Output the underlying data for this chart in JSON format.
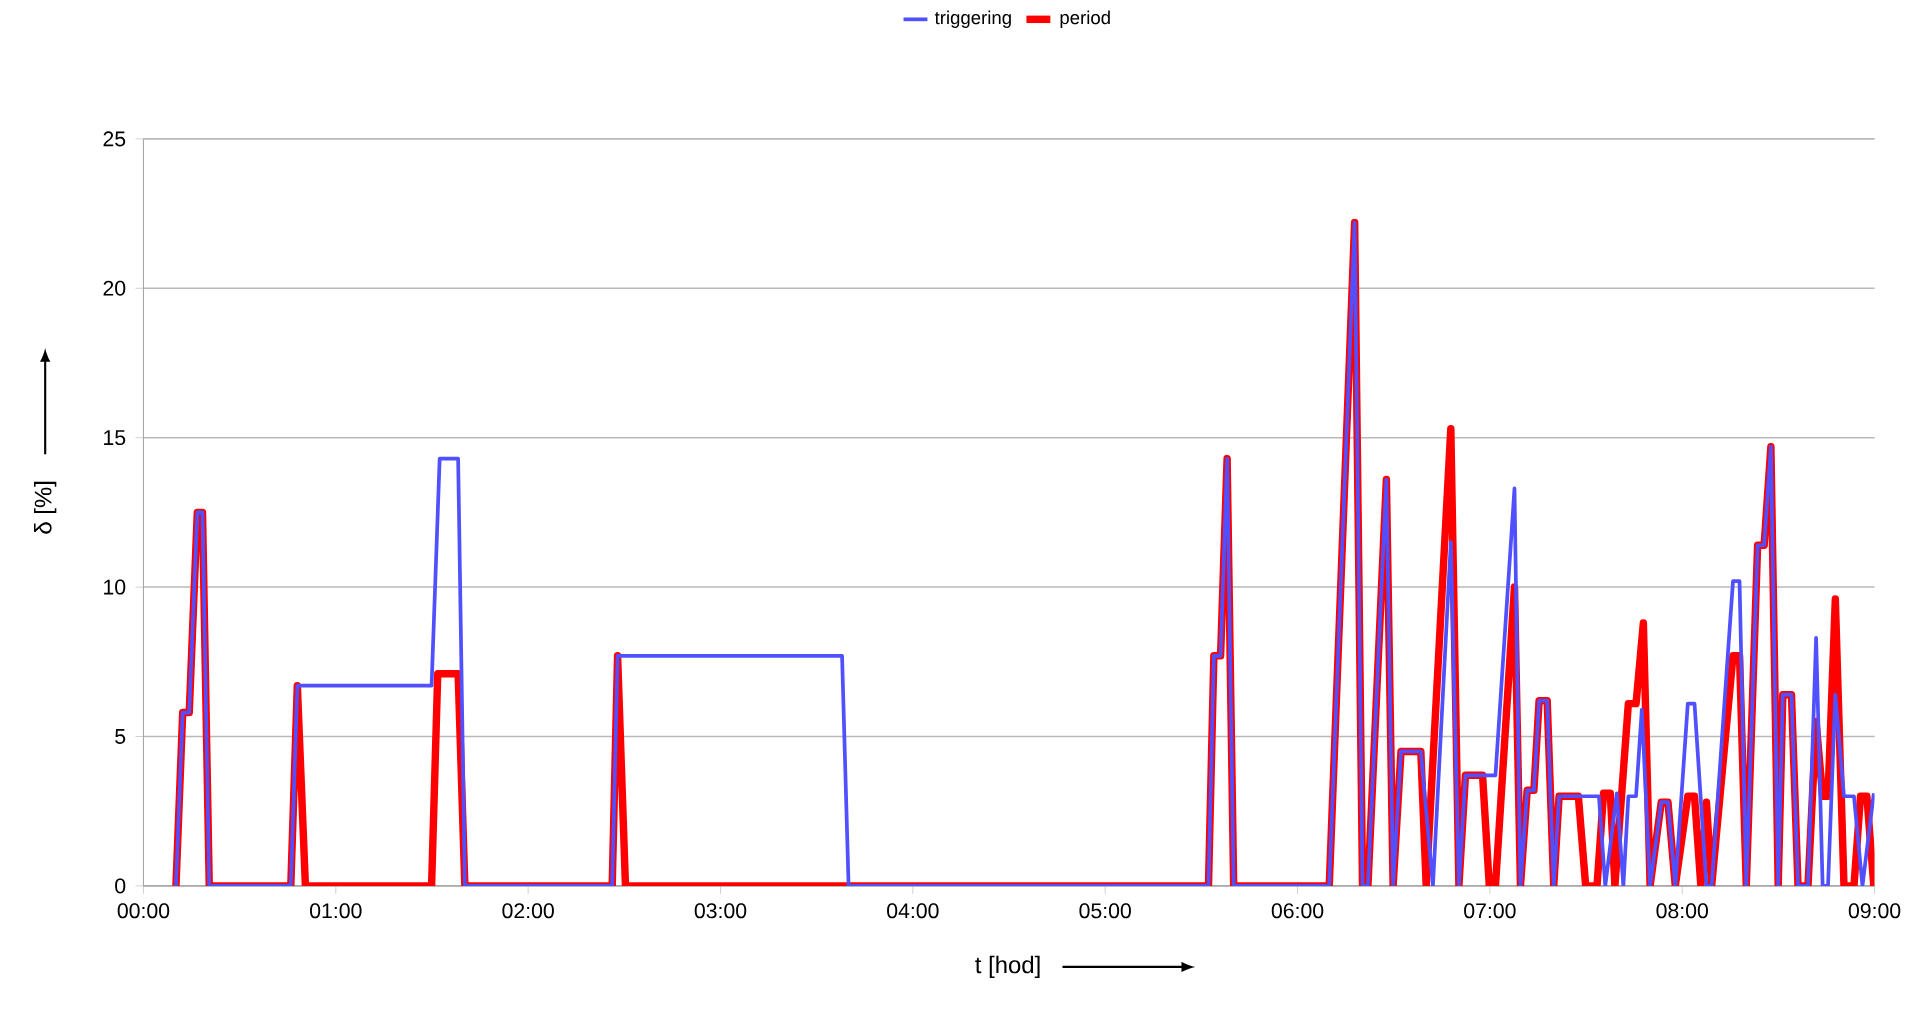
{
  "chart_data": {
    "type": "line",
    "xlabel": "t [hod]",
    "ylabel": "δ [%]",
    "xlim": [
      0,
      9
    ],
    "xticks": [
      {
        "value": 0,
        "label": "00:00"
      },
      {
        "value": 1,
        "label": "01:00"
      },
      {
        "value": 2,
        "label": "02:00"
      },
      {
        "value": 3,
        "label": "03:00"
      },
      {
        "value": 4,
        "label": "04:00"
      },
      {
        "value": 5,
        "label": "05:00"
      },
      {
        "value": 6,
        "label": "06:00"
      },
      {
        "value": 7,
        "label": "07:00"
      },
      {
        "value": 8,
        "label": "08:00"
      },
      {
        "value": 9,
        "label": "09:00"
      }
    ],
    "ylim": [
      0,
      25
    ],
    "yticks": [
      0,
      5,
      10,
      15,
      20,
      25
    ],
    "grid": "y",
    "legend": "top",
    "marker": "none",
    "line_style": "solid",
    "series": [
      {
        "name": "triggering",
        "color": "#5050ff",
        "x": [
          0.169,
          0.204,
          0.238,
          0.28,
          0.307,
          0.342,
          0.766,
          0.8,
          1.498,
          1.54,
          1.636,
          1.671,
          2.437,
          2.465,
          3.632,
          3.666,
          5.537,
          5.565,
          5.6,
          5.634,
          5.668,
          6.165,
          6.297,
          6.338,
          6.366,
          6.462,
          6.497,
          6.538,
          6.641,
          6.704,
          6.797,
          6.839,
          6.873,
          7.029,
          7.128,
          7.159,
          7.194,
          7.229,
          7.256,
          7.298,
          7.332,
          7.36,
          7.567,
          7.6,
          7.66,
          7.694,
          7.72,
          7.76,
          7.79,
          7.833,
          7.891,
          7.926,
          7.964,
          8.029,
          8.064,
          8.126,
          8.153,
          8.264,
          8.298,
          8.333,
          8.392,
          8.426,
          8.461,
          8.499,
          8.523,
          8.568,
          8.602,
          8.654,
          8.696,
          8.73,
          8.758,
          8.796,
          8.841,
          8.893,
          8.937,
          8.996
        ],
        "values": [
          0,
          5.8,
          5.8,
          12.5,
          12.5,
          0,
          0,
          6.7,
          6.7,
          14.3,
          14.3,
          0,
          0,
          7.7,
          7.7,
          0,
          0,
          7.7,
          7.7,
          14.3,
          0,
          0,
          22.2,
          0,
          0,
          13.6,
          0,
          4.5,
          4.5,
          0,
          11.5,
          0,
          3.7,
          3.7,
          13.3,
          0,
          3.2,
          3.2,
          6.2,
          6.2,
          0,
          3,
          3,
          0,
          3.1,
          0,
          3,
          3,
          5.9,
          0,
          2.8,
          2.8,
          0,
          6.1,
          6.1,
          0,
          0,
          10.2,
          10.2,
          0,
          11.4,
          11.4,
          14.7,
          0,
          6.4,
          6.4,
          0,
          0,
          8.3,
          0,
          0,
          6.4,
          3,
          3,
          0,
          3.1
        ]
      },
      {
        "name": "period",
        "color": "#ff0000",
        "x": [
          0.169,
          0.204,
          0.238,
          0.28,
          0.307,
          0.342,
          0.766,
          0.8,
          0.842,
          1.498,
          1.53,
          1.636,
          1.671,
          2.437,
          2.465,
          2.506,
          5.537,
          5.565,
          5.6,
          5.634,
          5.668,
          6.165,
          6.297,
          6.338,
          6.366,
          6.462,
          6.497,
          6.538,
          6.641,
          6.669,
          6.797,
          6.839,
          6.873,
          6.962,
          6.997,
          7.029,
          7.128,
          7.159,
          7.194,
          7.229,
          7.256,
          7.298,
          7.332,
          7.36,
          7.46,
          7.498,
          7.557,
          7.591,
          7.626,
          7.65,
          7.72,
          7.76,
          7.798,
          7.833,
          7.891,
          7.926,
          7.964,
          8.029,
          8.064,
          8.097,
          8.126,
          8.153,
          8.264,
          8.298,
          8.333,
          8.392,
          8.426,
          8.461,
          8.499,
          8.523,
          8.568,
          8.602,
          8.654,
          8.696,
          8.73,
          8.758,
          8.796,
          8.841,
          8.893,
          8.927,
          8.96,
          8.996
        ],
        "values": [
          0,
          5.8,
          5.8,
          12.5,
          12.5,
          0,
          0,
          6.7,
          0,
          0,
          7.1,
          7.1,
          0,
          0,
          7.7,
          0,
          0,
          7.7,
          7.7,
          14.3,
          0,
          0,
          22.2,
          0,
          0,
          13.6,
          0,
          4.5,
          4.5,
          0,
          15.3,
          0,
          3.7,
          3.7,
          0,
          0,
          10,
          0,
          3.2,
          3.2,
          6.2,
          6.2,
          0,
          3,
          3,
          0,
          0,
          3.1,
          3.1,
          0,
          6.1,
          6.1,
          8.8,
          0,
          2.8,
          2.8,
          0,
          3,
          3,
          0,
          2.8,
          0,
          7.7,
          7.7,
          0,
          11.4,
          11.4,
          14.7,
          0,
          6.4,
          6.4,
          0,
          0,
          5.5,
          3,
          3,
          9.6,
          0,
          0,
          3,
          3,
          0
        ]
      }
    ]
  }
}
